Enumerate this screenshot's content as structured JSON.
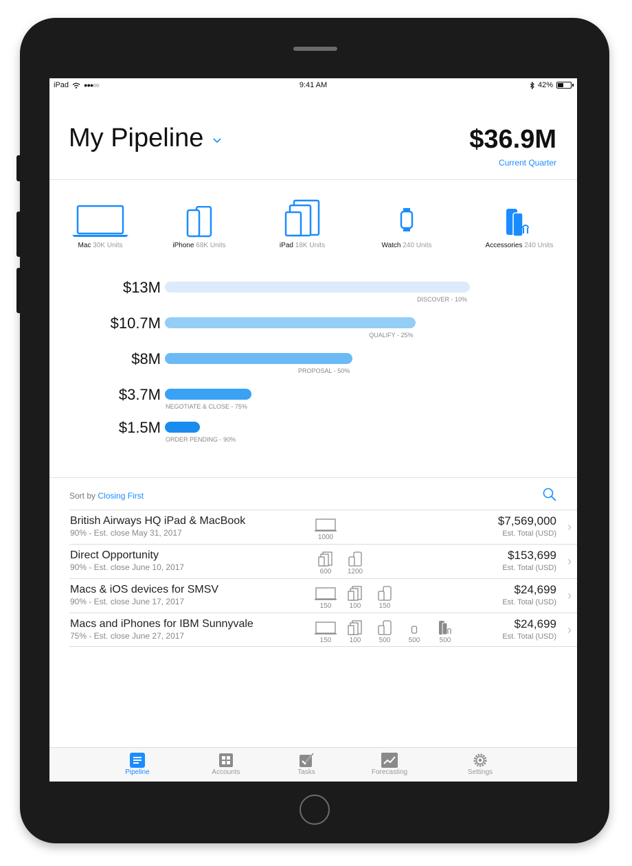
{
  "status_bar": {
    "device": "iPad",
    "signal": "●●●○○",
    "time": "9:41 AM",
    "battery": "42%"
  },
  "header": {
    "title": "My Pipeline",
    "total": "$36.9M",
    "period": "Current Quarter"
  },
  "products": [
    {
      "name": "Mac",
      "units": "30K Units",
      "icon": "laptop-icon"
    },
    {
      "name": "iPhone",
      "units": "68K Units",
      "icon": "iphone-icon"
    },
    {
      "name": "iPad",
      "units": "18K Units",
      "icon": "ipad-icon"
    },
    {
      "name": "Watch",
      "units": "240 Units",
      "icon": "watch-icon"
    },
    {
      "name": "Accessories",
      "units": "240 Units",
      "icon": "accessories-icon"
    }
  ],
  "funnel": [
    {
      "amount": "$13M",
      "stage": "DISCOVER - 10%",
      "value": 13,
      "color": "#dcebfb"
    },
    {
      "amount": "$10.7M",
      "stage": "QUALIFY - 25%",
      "value": 10.7,
      "color": "#94cdf6"
    },
    {
      "amount": "$8M",
      "stage": "PROPOSAL - 50%",
      "value": 8,
      "color": "#6bbaf6"
    },
    {
      "amount": "$3.7M",
      "stage": "NEGOTIATE & CLOSE - 75%",
      "value": 3.7,
      "color": "#3aa2f5"
    },
    {
      "amount": "$1.5M",
      "stage": "ORDER PENDING - 90%",
      "value": 1.5,
      "color": "#1a8cf0"
    }
  ],
  "list": {
    "sort_prefix": "Sort by",
    "sort_value": "Closing First",
    "rows": [
      {
        "name": "British Airways HQ iPad & MacBook",
        "sub": "90% - Est. close May 31, 2017",
        "amount": "$7,569,000",
        "est": "Est. Total (USD)",
        "units": [
          {
            "icon": "laptop",
            "qty": "1000"
          }
        ]
      },
      {
        "name": "Direct Opportunity",
        "sub": "90% - Est. close June 10, 2017",
        "amount": "$153,699",
        "est": "Est. Total (USD)",
        "units": [
          {
            "icon": "ipad",
            "qty": "600"
          },
          {
            "icon": "iphone",
            "qty": "1200"
          }
        ]
      },
      {
        "name": "Macs & iOS devices for SMSV",
        "sub": "90% - Est. close June 17, 2017",
        "amount": "$24,699",
        "est": "Est. Total (USD)",
        "units": [
          {
            "icon": "laptop",
            "qty": "150"
          },
          {
            "icon": "ipad",
            "qty": "100"
          },
          {
            "icon": "iphone",
            "qty": "150"
          }
        ]
      },
      {
        "name": "Macs and iPhones for IBM Sunnyvale",
        "sub": "75% - Est. close June 27, 2017",
        "amount": "$24,699",
        "est": "Est. Total (USD)",
        "units": [
          {
            "icon": "laptop",
            "qty": "150"
          },
          {
            "icon": "ipad",
            "qty": "100"
          },
          {
            "icon": "iphone",
            "qty": "500"
          },
          {
            "icon": "watch",
            "qty": "500"
          },
          {
            "icon": "accessories",
            "qty": "500"
          }
        ]
      }
    ]
  },
  "tabs": [
    {
      "label": "Pipeline",
      "icon": "pipeline-icon",
      "active": true
    },
    {
      "label": "Accounts",
      "icon": "accounts-icon",
      "active": false
    },
    {
      "label": "Tasks",
      "icon": "tasks-icon",
      "active": false
    },
    {
      "label": "Forecasting",
      "icon": "forecasting-icon",
      "active": false
    },
    {
      "label": "Settings",
      "icon": "settings-icon",
      "active": false
    }
  ],
  "colors": {
    "accent": "#1a8cff",
    "device": "#1b1b1b"
  }
}
